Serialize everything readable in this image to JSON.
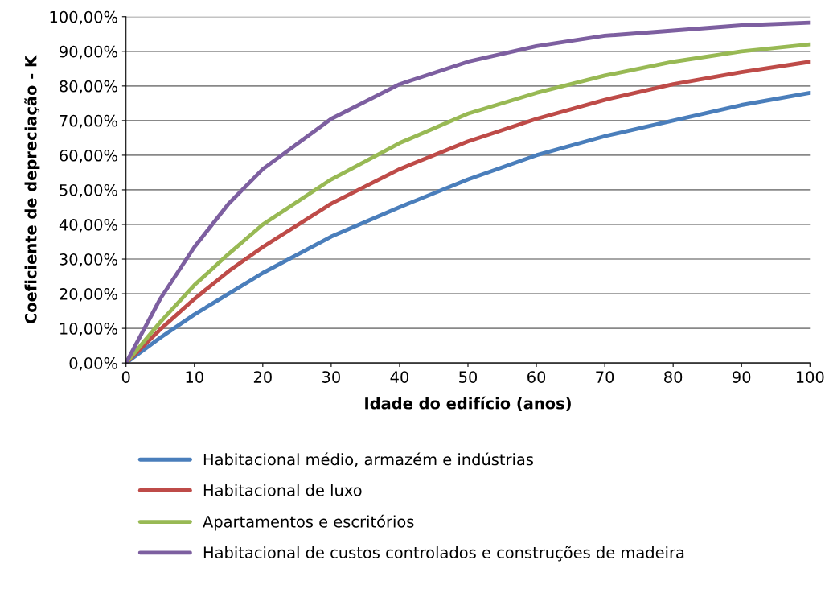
{
  "chart_data": {
    "type": "line",
    "xlabel": "Idade do edifício (anos)",
    "ylabel": "Coeficiente de depreciação - K",
    "x": [
      0,
      5,
      10,
      15,
      20,
      30,
      40,
      50,
      60,
      70,
      80,
      90,
      100
    ],
    "series": [
      {
        "name": "Habitacional médio, armazém e indústrias",
        "color": "#4a7ebb",
        "values": [
          0,
          7.3,
          14,
          20,
          26,
          36.5,
          45,
          53,
          60,
          65.5,
          70,
          74.5,
          78
        ]
      },
      {
        "name": "Habitacional de luxo",
        "color": "#be4b48",
        "values": [
          0,
          9.7,
          18.5,
          26.5,
          33.5,
          46,
          56,
          64,
          70.5,
          76,
          80.5,
          84,
          87
        ]
      },
      {
        "name": "Apartamentos e escritórios",
        "color": "#98b954",
        "values": [
          0,
          11.8,
          22.5,
          31.5,
          40,
          53,
          63.5,
          72,
          78,
          83,
          87,
          90,
          92
        ]
      },
      {
        "name": "Habitacional de custos controlados e construções de madeira",
        "color": "#7d5fa0",
        "values": [
          0,
          18.5,
          33.5,
          46,
          56,
          70.5,
          80.5,
          87,
          91.5,
          94.5,
          96,
          97.5,
          98.3
        ]
      }
    ],
    "xlim": [
      0,
      100
    ],
    "xticks": [
      0,
      10,
      20,
      30,
      40,
      50,
      60,
      70,
      80,
      90,
      100
    ],
    "ylim": [
      0,
      100
    ],
    "yticks": [
      {
        "value": 0,
        "label": "0,00%"
      },
      {
        "value": 10,
        "label": "10,00%"
      },
      {
        "value": 20,
        "label": "20,00%"
      },
      {
        "value": 30,
        "label": "30,00%"
      },
      {
        "value": 40,
        "label": "40,00%"
      },
      {
        "value": 50,
        "label": "50,00%"
      },
      {
        "value": 60,
        "label": "60,00%"
      },
      {
        "value": 70,
        "label": "70,00%"
      },
      {
        "value": 80,
        "label": "80,00%"
      },
      {
        "value": 90,
        "label": "90,00%"
      },
      {
        "value": 100,
        "label": "100,00%"
      }
    ],
    "grid": "y",
    "legend": "bottom",
    "marker": "none",
    "line_style": "solid"
  }
}
